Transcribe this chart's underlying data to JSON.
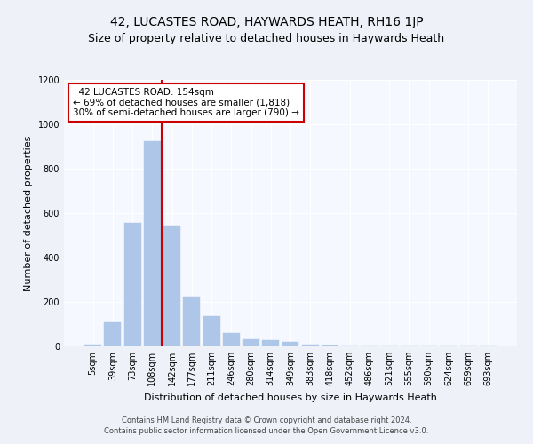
{
  "title1": "42, LUCASTES ROAD, HAYWARDS HEATH, RH16 1JP",
  "title2": "Size of property relative to detached houses in Haywards Heath",
  "xlabel": "Distribution of detached houses by size in Haywards Heath",
  "ylabel": "Number of detached properties",
  "categories": [
    "5sqm",
    "39sqm",
    "73sqm",
    "108sqm",
    "142sqm",
    "177sqm",
    "211sqm",
    "246sqm",
    "280sqm",
    "314sqm",
    "349sqm",
    "383sqm",
    "418sqm",
    "452sqm",
    "486sqm",
    "521sqm",
    "555sqm",
    "590sqm",
    "624sqm",
    "659sqm",
    "693sqm"
  ],
  "values": [
    8,
    110,
    555,
    925,
    545,
    225,
    135,
    60,
    32,
    28,
    20,
    7,
    4,
    0,
    0,
    0,
    0,
    0,
    0,
    0,
    0
  ],
  "bar_color": "#aec6e8",
  "bar_edgecolor": "#aec6e8",
  "vline_color": "#cc0000",
  "annotation_text": "  42 LUCASTES ROAD: 154sqm\n← 69% of detached houses are smaller (1,818)\n30% of semi-detached houses are larger (790) →",
  "annotation_box_color": "#ffffff",
  "annotation_box_edgecolor": "#cc0000",
  "ylim": [
    0,
    1200
  ],
  "yticks": [
    0,
    200,
    400,
    600,
    800,
    1000,
    1200
  ],
  "footer1": "Contains HM Land Registry data © Crown copyright and database right 2024.",
  "footer2": "Contains public sector information licensed under the Open Government Licence v3.0.",
  "bg_color": "#eef2f8",
  "plot_bg_color": "#f5f8fe",
  "title1_fontsize": 10,
  "title2_fontsize": 9,
  "xlabel_fontsize": 8,
  "ylabel_fontsize": 8,
  "tick_fontsize": 7,
  "footer_fontsize": 6
}
